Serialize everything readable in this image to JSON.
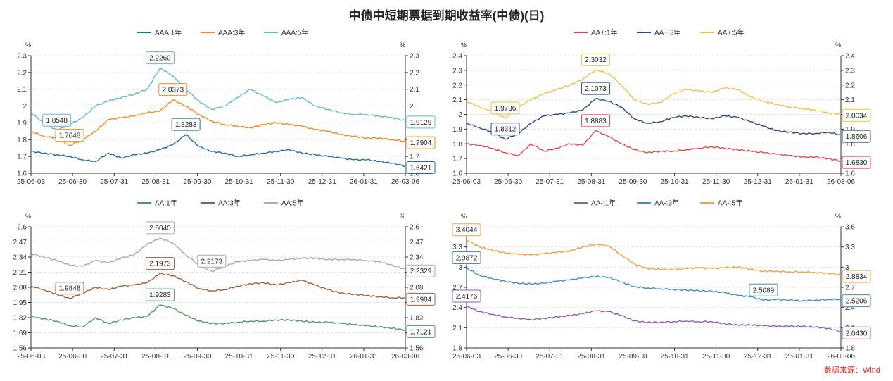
{
  "title": "中债中短期票据到期收益率(中债)(日)",
  "source": "数据来源：Wind",
  "chart_data": [
    {
      "type": "line",
      "unit_left": "%",
      "unit_right": "%",
      "ylim": [
        1.6,
        2.3
      ],
      "yticks": [
        1.6,
        1.7,
        1.8,
        1.9,
        2.0,
        2.1,
        2.2,
        2.3
      ],
      "ytick_labels": [
        "1.6",
        "1.7",
        "1.8",
        "1.9",
        "2",
        "2.1",
        "2.2",
        "2.3"
      ],
      "xtick_labels": [
        "25-06-03",
        "25-06-30",
        "25-07-31",
        "25-08-31",
        "25-09-30",
        "25-10-31",
        "25-11-30",
        "25-12-31",
        "26-01-31",
        "26-03-06"
      ],
      "series": [
        {
          "name": "AAA:1年",
          "color": "#1f6f9a",
          "values": [
            1.73,
            1.72,
            1.71,
            1.7,
            1.68,
            1.67,
            1.72,
            1.69,
            1.71,
            1.72,
            1.74,
            1.77,
            1.83,
            1.76,
            1.73,
            1.72,
            1.7,
            1.71,
            1.72,
            1.73,
            1.74,
            1.72,
            1.71,
            1.7,
            1.69,
            1.68,
            1.68,
            1.67,
            1.66,
            1.6421
          ],
          "annotations": [
            {
              "index": 12,
              "label": "1.8283"
            },
            {
              "index": 29,
              "label": "1.6421",
              "side": "right"
            }
          ]
        },
        {
          "name": "AAA:3年",
          "color": "#f28a1e",
          "values": [
            1.85,
            1.82,
            1.81,
            1.7648,
            1.8,
            1.85,
            1.92,
            1.93,
            1.94,
            1.96,
            1.97,
            2.0373,
            2.0,
            1.95,
            1.91,
            1.89,
            1.88,
            1.87,
            1.89,
            1.9,
            1.89,
            1.88,
            1.86,
            1.85,
            1.83,
            1.82,
            1.81,
            1.81,
            1.8,
            1.7904
          ],
          "annotations": [
            {
              "index": 3,
              "label": "1.7648"
            },
            {
              "index": 11,
              "label": "2.0373"
            },
            {
              "index": 29,
              "label": "1.7904",
              "side": "right"
            }
          ]
        },
        {
          "name": "AAA:5年",
          "color": "#5fbcc4",
          "values": [
            1.96,
            1.9,
            1.8548,
            1.89,
            1.93,
            2.0,
            2.03,
            2.05,
            2.07,
            2.1,
            2.226,
            2.18,
            2.1,
            2.03,
            1.98,
            2.0,
            2.05,
            2.1,
            2.06,
            2.02,
            2.04,
            2.05,
            2.0,
            1.98,
            1.96,
            1.95,
            1.95,
            1.94,
            1.93,
            1.9129
          ],
          "annotations": [
            {
              "index": 2,
              "label": "1.8548"
            },
            {
              "index": 10,
              "label": "2.2260"
            },
            {
              "index": 29,
              "label": "1.9129",
              "side": "right"
            }
          ]
        }
      ]
    },
    {
      "type": "line",
      "unit_left": "%",
      "unit_right": "%",
      "ylim": [
        1.6,
        2.4
      ],
      "yticks": [
        1.6,
        1.7,
        1.8,
        1.9,
        2.0,
        2.1,
        2.2,
        2.3,
        2.4
      ],
      "ytick_labels": [
        "1.6",
        "1.7",
        "1.8",
        "1.9",
        "2",
        "2.1",
        "2.2",
        "2.3",
        "2.4"
      ],
      "xtick_labels": [
        "25-06-03",
        "25-06-30",
        "25-07-31",
        "25-08-31",
        "25-09-30",
        "25-10-31",
        "25-11-30",
        "25-12-31",
        "26-01-31",
        "26-03-06"
      ],
      "series": [
        {
          "name": "AA+:1年",
          "color": "#e0474c",
          "values": [
            1.8,
            1.79,
            1.77,
            1.74,
            1.72,
            1.8,
            1.75,
            1.77,
            1.8,
            1.79,
            1.8883,
            1.85,
            1.8,
            1.76,
            1.74,
            1.75,
            1.75,
            1.76,
            1.77,
            1.78,
            1.77,
            1.76,
            1.75,
            1.74,
            1.73,
            1.72,
            1.71,
            1.71,
            1.7,
            1.683
          ],
          "annotations": [
            {
              "index": 10,
              "label": "1.8883"
            },
            {
              "index": 29,
              "label": "1.6830",
              "side": "right"
            }
          ]
        },
        {
          "name": "AA+:3年",
          "color": "#2e4a7d",
          "values": [
            1.94,
            1.91,
            1.88,
            1.8312,
            1.87,
            1.94,
            1.99,
            2.0,
            2.01,
            2.03,
            2.1073,
            2.09,
            2.05,
            1.97,
            1.94,
            1.95,
            1.98,
            1.99,
            1.98,
            1.97,
            1.99,
            1.98,
            1.95,
            1.92,
            1.89,
            1.88,
            1.87,
            1.87,
            1.88,
            1.8606
          ],
          "annotations": [
            {
              "index": 3,
              "label": "1.8312"
            },
            {
              "index": 10,
              "label": "2.1073"
            },
            {
              "index": 29,
              "label": "1.8606",
              "side": "right"
            }
          ]
        },
        {
          "name": "AA+:5年",
          "color": "#e8c24a",
          "values": [
            2.09,
            2.05,
            2.02,
            1.9736,
            2.05,
            2.1,
            2.14,
            2.17,
            2.2,
            2.24,
            2.3032,
            2.28,
            2.2,
            2.1,
            2.07,
            2.08,
            2.14,
            2.17,
            2.16,
            2.15,
            2.18,
            2.17,
            2.12,
            2.09,
            2.07,
            2.05,
            2.04,
            2.03,
            2.01,
            2.0034
          ],
          "annotations": [
            {
              "index": 3,
              "label": "1.9736"
            },
            {
              "index": 10,
              "label": "2.3032"
            },
            {
              "index": 29,
              "label": "2.0034",
              "side": "right"
            }
          ]
        }
      ]
    },
    {
      "type": "line",
      "unit_left": "%",
      "unit_right": "%",
      "ylim": [
        1.56,
        2.6
      ],
      "yticks": [
        1.56,
        1.69,
        1.82,
        1.95,
        2.08,
        2.21,
        2.34,
        2.47,
        2.6
      ],
      "ytick_labels": [
        "1.56",
        "1.69",
        "1.82",
        "1.95",
        "2.08",
        "2.21",
        "2.34",
        "2.47",
        "2.6"
      ],
      "xtick_labels": [
        "25-06-03",
        "25-06-30",
        "25-07-31",
        "25-08-31",
        "25-09-30",
        "25-10-31",
        "25-11-30",
        "25-12-31",
        "26-01-31",
        "26-03-06"
      ],
      "series": [
        {
          "name": "AA:1年",
          "color": "#4f9a5e",
          "values": [
            1.83,
            1.81,
            1.79,
            1.75,
            1.74,
            1.82,
            1.77,
            1.8,
            1.82,
            1.83,
            1.9283,
            1.9,
            1.84,
            1.79,
            1.77,
            1.77,
            1.78,
            1.79,
            1.79,
            1.8,
            1.8,
            1.79,
            1.78,
            1.78,
            1.77,
            1.76,
            1.75,
            1.74,
            1.73,
            1.7121
          ],
          "annotations": [
            {
              "index": 10,
              "label": "1.9283"
            },
            {
              "index": 29,
              "label": "1.7121",
              "side": "right"
            }
          ]
        },
        {
          "name": "AA:3年",
          "color": "#a0603d",
          "values": [
            2.09,
            2.06,
            2.02,
            1.9848,
            2.03,
            2.08,
            2.06,
            2.09,
            2.1,
            2.12,
            2.1973,
            2.18,
            2.13,
            2.07,
            2.05,
            2.06,
            2.09,
            2.11,
            2.12,
            2.1,
            2.12,
            2.14,
            2.1,
            2.06,
            2.03,
            2.02,
            2.01,
            2.0,
            1.99,
            1.9904
          ],
          "annotations": [
            {
              "index": 3,
              "label": "1.9848"
            },
            {
              "index": 10,
              "label": "2.1973"
            },
            {
              "index": 29,
              "label": "1.9904",
              "side": "right"
            }
          ]
        },
        {
          "name": "AA:5年",
          "color": "#a9a9b3",
          "values": [
            2.37,
            2.34,
            2.31,
            2.27,
            2.26,
            2.31,
            2.29,
            2.33,
            2.36,
            2.45,
            2.504,
            2.46,
            2.36,
            2.27,
            2.2173,
            2.26,
            2.3,
            2.31,
            2.32,
            2.31,
            2.32,
            2.33,
            2.33,
            2.32,
            2.32,
            2.32,
            2.31,
            2.3,
            2.27,
            2.2329
          ],
          "annotations": [
            {
              "index": 10,
              "label": "2.5040"
            },
            {
              "index": 14,
              "label": "2.2173"
            },
            {
              "index": 29,
              "label": "2.2329",
              "side": "right"
            }
          ]
        }
      ]
    },
    {
      "type": "line",
      "unit_left": "%",
      "unit_right": "%",
      "ylim": [
        1.8,
        3.6
      ],
      "yticks": [
        1.8,
        2.1,
        2.4,
        2.7,
        3.0,
        3.3,
        3.6
      ],
      "ytick_labels": [
        "1.8",
        "2.1",
        "2.4",
        "2.7",
        "3",
        "3.3",
        "3.6"
      ],
      "xtick_labels": [
        "25-06-03",
        "25-06-30",
        "25-07-31",
        "25-08-31",
        "25-09-30",
        "25-10-31",
        "25-11-30",
        "25-12-31",
        "26-01-31",
        "26-03-06"
      ],
      "series": [
        {
          "name": "AA-:1年",
          "color": "#8e5bb5",
          "values": [
            2.4176,
            2.34,
            2.3,
            2.26,
            2.24,
            2.22,
            2.24,
            2.26,
            2.28,
            2.31,
            2.35,
            2.34,
            2.28,
            2.2,
            2.18,
            2.18,
            2.19,
            2.2,
            2.19,
            2.19,
            2.16,
            2.14,
            2.14,
            2.13,
            2.12,
            2.12,
            2.12,
            2.11,
            2.09,
            2.043
          ],
          "annotations": [
            {
              "index": 0,
              "label": "2.4176"
            },
            {
              "index": 29,
              "label": "2.0430",
              "side": "right"
            }
          ]
        },
        {
          "name": "AA-:3年",
          "color": "#3f8fbf",
          "values": [
            2.9872,
            2.88,
            2.83,
            2.79,
            2.76,
            2.75,
            2.76,
            2.79,
            2.81,
            2.84,
            2.86,
            2.85,
            2.78,
            2.71,
            2.69,
            2.68,
            2.67,
            2.66,
            2.65,
            2.64,
            2.62,
            2.58,
            2.56,
            2.5089,
            2.52,
            2.51,
            2.5,
            2.51,
            2.52,
            2.5206
          ],
          "annotations": [
            {
              "index": 0,
              "label": "2.9872"
            },
            {
              "index": 23,
              "label": "2.5089"
            },
            {
              "index": 29,
              "label": "2.5206",
              "side": "right"
            }
          ]
        },
        {
          "name": "AA-:5年",
          "color": "#f2a03d",
          "values": [
            3.4044,
            3.3,
            3.25,
            3.21,
            3.19,
            3.18,
            3.2,
            3.22,
            3.24,
            3.3,
            3.34,
            3.32,
            3.18,
            3.05,
            2.98,
            2.97,
            2.96,
            2.98,
            2.99,
            2.98,
            2.99,
            3.0,
            2.97,
            2.94,
            2.94,
            2.93,
            2.93,
            2.92,
            2.91,
            2.8834
          ],
          "annotations": [
            {
              "index": 0,
              "label": "3.4044"
            },
            {
              "index": 29,
              "label": "2.8834",
              "side": "right"
            }
          ]
        }
      ]
    }
  ]
}
